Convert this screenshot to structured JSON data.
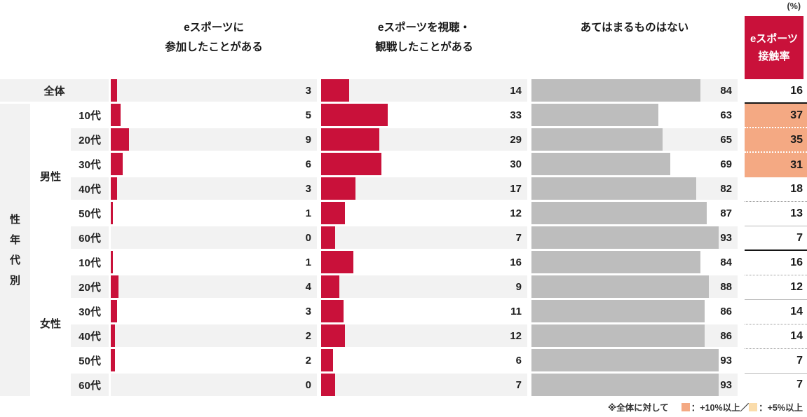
{
  "unit_label": "(%)",
  "column_headers": [
    {
      "line1": "eスポーツに",
      "line2": "参加したことがある"
    },
    {
      "line1": "eスポーツを視聴・",
      "line2": "観戦したことがある"
    },
    {
      "line1": "あてはまるものはない",
      "line2": ""
    }
  ],
  "contact_header": {
    "line1": "eスポーツ",
    "line2": "接触率"
  },
  "left_axis": {
    "group_vertical_label": "性年代別",
    "male_label": "男性",
    "female_label": "女性",
    "total_label": "全体"
  },
  "rows": [
    {
      "label": "全体",
      "participated": 3,
      "watched": 14,
      "none": 84,
      "contact": 16,
      "highlight": false,
      "stripe": true,
      "divider": "dark"
    },
    {
      "label": "10代",
      "participated": 5,
      "watched": 33,
      "none": 63,
      "contact": 37,
      "highlight": true,
      "stripe": false,
      "divider": "dotted-white"
    },
    {
      "label": "20代",
      "participated": 9,
      "watched": 29,
      "none": 65,
      "contact": 35,
      "highlight": true,
      "stripe": true,
      "divider": "dotted-white"
    },
    {
      "label": "30代",
      "participated": 6,
      "watched": 30,
      "none": 69,
      "contact": 31,
      "highlight": true,
      "stripe": false,
      "divider": "none"
    },
    {
      "label": "40代",
      "participated": 3,
      "watched": 17,
      "none": 82,
      "contact": 18,
      "highlight": false,
      "stripe": true,
      "divider": "dotted"
    },
    {
      "label": "50代",
      "participated": 1,
      "watched": 12,
      "none": 87,
      "contact": 13,
      "highlight": false,
      "stripe": false,
      "divider": "light"
    },
    {
      "label": "60代",
      "participated": 0,
      "watched": 7,
      "none": 93,
      "contact": 7,
      "highlight": false,
      "stripe": true,
      "divider": "dark"
    },
    {
      "label": "10代",
      "participated": 1,
      "watched": 16,
      "none": 84,
      "contact": 16,
      "highlight": false,
      "stripe": false,
      "divider": "dotted"
    },
    {
      "label": "20代",
      "participated": 4,
      "watched": 9,
      "none": 88,
      "contact": 12,
      "highlight": false,
      "stripe": true,
      "divider": "light"
    },
    {
      "label": "30代",
      "participated": 3,
      "watched": 11,
      "none": 86,
      "contact": 14,
      "highlight": false,
      "stripe": false,
      "divider": "dotted"
    },
    {
      "label": "40代",
      "participated": 2,
      "watched": 12,
      "none": 86,
      "contact": 14,
      "highlight": false,
      "stripe": true,
      "divider": "dotted"
    },
    {
      "label": "50代",
      "participated": 2,
      "watched": 6,
      "none": 93,
      "contact": 7,
      "highlight": false,
      "stripe": false,
      "divider": "light"
    },
    {
      "label": "60代",
      "participated": 0,
      "watched": 7,
      "none": 93,
      "contact": 7,
      "highlight": false,
      "stripe": true,
      "divider": "none"
    }
  ],
  "footnote": {
    "prefix": "※全体に対して",
    "legend1_label": "：+10%以上／",
    "legend2_label": "：+5%以上"
  },
  "colors": {
    "bar_red": "#c9113a",
    "bar_gray": "#bdbdbd",
    "row_stripe": "#f2f2f2",
    "highlight_strong": "#f4a983",
    "highlight_light": "#fadcab"
  },
  "chart_data": {
    "type": "bar",
    "orientation": "horizontal",
    "unit": "%",
    "xlim": [
      0,
      100
    ],
    "grid": false,
    "categories": [
      "全体",
      "男性10代",
      "男性20代",
      "男性30代",
      "男性40代",
      "男性50代",
      "男性60代",
      "女性10代",
      "女性20代",
      "女性30代",
      "女性40代",
      "女性50代",
      "女性60代"
    ],
    "series": [
      {
        "name": "eスポーツに参加したことがある",
        "color": "#c9113a",
        "values": [
          3,
          5,
          9,
          6,
          3,
          1,
          0,
          1,
          4,
          3,
          2,
          2,
          0
        ]
      },
      {
        "name": "eスポーツを視聴・観戦したことがある",
        "color": "#c9113a",
        "values": [
          14,
          33,
          29,
          30,
          17,
          12,
          7,
          16,
          9,
          11,
          12,
          6,
          7
        ]
      },
      {
        "name": "あてはまるものはない",
        "color": "#bdbdbd",
        "values": [
          84,
          63,
          65,
          69,
          82,
          87,
          93,
          84,
          88,
          86,
          86,
          93,
          93
        ]
      },
      {
        "name": "eスポーツ接触率",
        "color": null,
        "values": [
          16,
          37,
          35,
          31,
          18,
          13,
          7,
          16,
          12,
          14,
          14,
          7,
          7
        ]
      }
    ],
    "highlighted_categories": [
      "男性10代",
      "男性20代",
      "男性30代"
    ],
    "annotations": [
      "※全体に対して ■：+10%以上／■：+5%以上",
      "(%)"
    ]
  }
}
